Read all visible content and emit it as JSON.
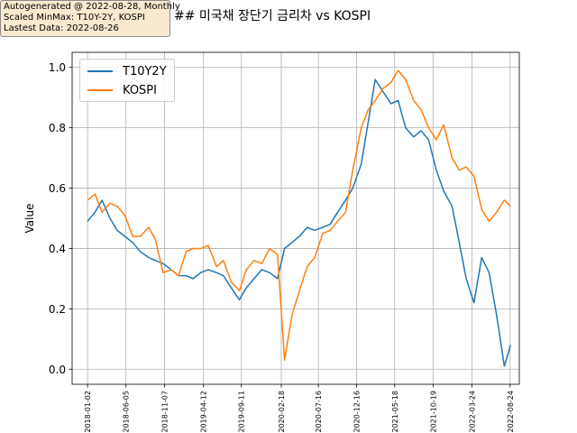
{
  "header": {
    "info_lines": [
      "Autogenerated @ 2022-08-28, Monthly",
      "Scaled MinMax: T10Y-2Y, KOSPI",
      "Lastest Data: 2022-08-26"
    ],
    "title": "## 미국채 장단기 금리차 vs KOSPI"
  },
  "chart_data": {
    "type": "line",
    "title": "## 미국채 장단기 금리차 vs KOSPI",
    "xlabel": "",
    "ylabel": "Value",
    "ylim": [
      -0.05,
      1.05
    ],
    "xlim": [
      "2017-11-01",
      "2022-09-30"
    ],
    "yticks": [
      0.0,
      0.2,
      0.4,
      0.6,
      0.8,
      1.0
    ],
    "ytick_labels": [
      "0.0",
      "0.2",
      "0.4",
      "0.6",
      "0.8",
      "1.0"
    ],
    "xticks": [
      "2018-01-02",
      "2018-06-05",
      "2018-11-07",
      "2019-04-12",
      "2019-09-11",
      "2020-02-18",
      "2020-07-16",
      "2020-12-16",
      "2021-05-18",
      "2021-10-19",
      "2022-03-24",
      "2022-08-24"
    ],
    "grid": true,
    "legend_position": "top-left",
    "series": [
      {
        "name": "T10Y2Y",
        "color": "#1f77b4",
        "points": [
          [
            "2018-01-02",
            0.49
          ],
          [
            "2018-02-01",
            0.52
          ],
          [
            "2018-03-01",
            0.56
          ],
          [
            "2018-04-02",
            0.5
          ],
          [
            "2018-05-01",
            0.46
          ],
          [
            "2018-06-01",
            0.44
          ],
          [
            "2018-07-02",
            0.42
          ],
          [
            "2018-08-01",
            0.39
          ],
          [
            "2018-09-04",
            0.37
          ],
          [
            "2018-10-01",
            0.36
          ],
          [
            "2018-11-01",
            0.35
          ],
          [
            "2018-12-03",
            0.33
          ],
          [
            "2019-01-02",
            0.31
          ],
          [
            "2019-02-01",
            0.31
          ],
          [
            "2019-03-01",
            0.3
          ],
          [
            "2019-04-01",
            0.32
          ],
          [
            "2019-05-01",
            0.33
          ],
          [
            "2019-06-03",
            0.32
          ],
          [
            "2019-07-01",
            0.31
          ],
          [
            "2019-08-01",
            0.27
          ],
          [
            "2019-09-03",
            0.23
          ],
          [
            "2019-10-01",
            0.27
          ],
          [
            "2019-11-01",
            0.3
          ],
          [
            "2019-12-02",
            0.33
          ],
          [
            "2020-01-02",
            0.32
          ],
          [
            "2020-02-03",
            0.3
          ],
          [
            "2020-03-02",
            0.4
          ],
          [
            "2020-04-01",
            0.42
          ],
          [
            "2020-05-01",
            0.44
          ],
          [
            "2020-06-01",
            0.47
          ],
          [
            "2020-07-01",
            0.46
          ],
          [
            "2020-08-03",
            0.47
          ],
          [
            "2020-09-01",
            0.48
          ],
          [
            "2020-10-01",
            0.52
          ],
          [
            "2020-11-02",
            0.56
          ],
          [
            "2020-12-01",
            0.6
          ],
          [
            "2021-01-04",
            0.68
          ],
          [
            "2021-02-01",
            0.82
          ],
          [
            "2021-03-01",
            0.96
          ],
          [
            "2021-04-01",
            0.92
          ],
          [
            "2021-05-03",
            0.88
          ],
          [
            "2021-06-01",
            0.89
          ],
          [
            "2021-07-01",
            0.8
          ],
          [
            "2021-08-02",
            0.77
          ],
          [
            "2021-09-01",
            0.79
          ],
          [
            "2021-10-01",
            0.76
          ],
          [
            "2021-11-01",
            0.66
          ],
          [
            "2021-12-01",
            0.59
          ],
          [
            "2022-01-03",
            0.54
          ],
          [
            "2022-02-01",
            0.42
          ],
          [
            "2022-03-01",
            0.3
          ],
          [
            "2022-04-01",
            0.22
          ],
          [
            "2022-05-02",
            0.37
          ],
          [
            "2022-06-01",
            0.32
          ],
          [
            "2022-07-01",
            0.18
          ],
          [
            "2022-08-01",
            0.01
          ],
          [
            "2022-08-26",
            0.08
          ]
        ]
      },
      {
        "name": "KOSPI",
        "color": "#ff7f0e",
        "points": [
          [
            "2018-01-02",
            0.56
          ],
          [
            "2018-02-01",
            0.58
          ],
          [
            "2018-03-01",
            0.52
          ],
          [
            "2018-04-02",
            0.55
          ],
          [
            "2018-05-01",
            0.54
          ],
          [
            "2018-06-01",
            0.51
          ],
          [
            "2018-07-02",
            0.44
          ],
          [
            "2018-08-01",
            0.44
          ],
          [
            "2018-09-04",
            0.47
          ],
          [
            "2018-10-01",
            0.43
          ],
          [
            "2018-11-01",
            0.32
          ],
          [
            "2018-12-03",
            0.33
          ],
          [
            "2019-01-02",
            0.31
          ],
          [
            "2019-02-01",
            0.39
          ],
          [
            "2019-03-01",
            0.4
          ],
          [
            "2019-04-01",
            0.4
          ],
          [
            "2019-05-01",
            0.41
          ],
          [
            "2019-06-03",
            0.34
          ],
          [
            "2019-07-01",
            0.36
          ],
          [
            "2019-08-01",
            0.29
          ],
          [
            "2019-09-03",
            0.26
          ],
          [
            "2019-10-01",
            0.33
          ],
          [
            "2019-11-01",
            0.36
          ],
          [
            "2019-12-02",
            0.35
          ],
          [
            "2020-01-02",
            0.4
          ],
          [
            "2020-02-03",
            0.38
          ],
          [
            "2020-03-02",
            0.03
          ],
          [
            "2020-04-01",
            0.18
          ],
          [
            "2020-05-01",
            0.26
          ],
          [
            "2020-06-01",
            0.34
          ],
          [
            "2020-07-01",
            0.37
          ],
          [
            "2020-08-03",
            0.45
          ],
          [
            "2020-09-01",
            0.46
          ],
          [
            "2020-10-01",
            0.49
          ],
          [
            "2020-11-02",
            0.52
          ],
          [
            "2020-12-01",
            0.66
          ],
          [
            "2021-01-04",
            0.8
          ],
          [
            "2021-02-01",
            0.86
          ],
          [
            "2021-03-01",
            0.89
          ],
          [
            "2021-04-01",
            0.93
          ],
          [
            "2021-05-03",
            0.95
          ],
          [
            "2021-06-01",
            0.99
          ],
          [
            "2021-07-01",
            0.96
          ],
          [
            "2021-08-02",
            0.89
          ],
          [
            "2021-09-01",
            0.86
          ],
          [
            "2021-10-01",
            0.8
          ],
          [
            "2021-11-01",
            0.76
          ],
          [
            "2021-12-01",
            0.81
          ],
          [
            "2022-01-03",
            0.7
          ],
          [
            "2022-02-01",
            0.66
          ],
          [
            "2022-03-01",
            0.67
          ],
          [
            "2022-04-01",
            0.64
          ],
          [
            "2022-05-02",
            0.53
          ],
          [
            "2022-06-01",
            0.49
          ],
          [
            "2022-07-01",
            0.52
          ],
          [
            "2022-08-01",
            0.56
          ],
          [
            "2022-08-26",
            0.54
          ]
        ]
      }
    ]
  }
}
